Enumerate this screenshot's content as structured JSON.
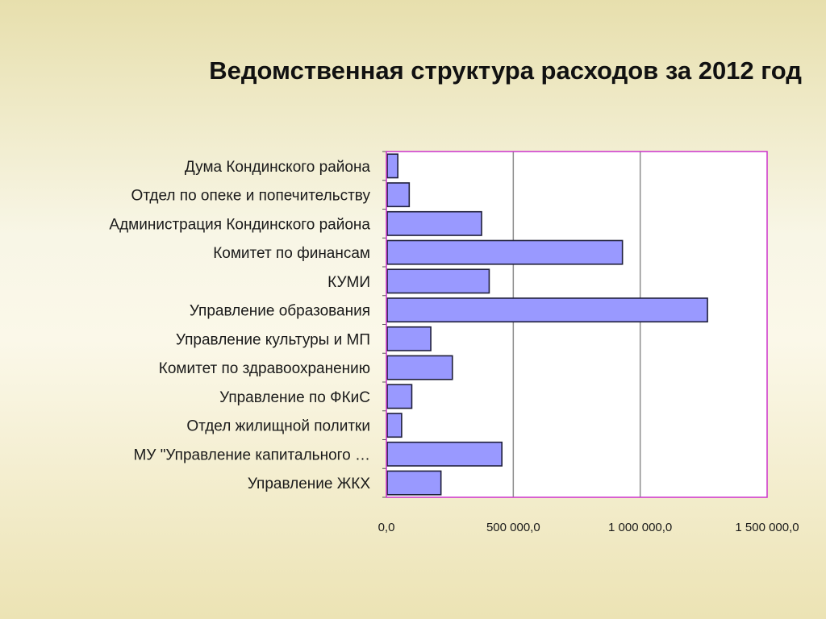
{
  "title": "Ведомственная структура расходов за 2012 год",
  "colors": {
    "bar_fill": "#9999ff",
    "bar_stroke": "#1f1f3a",
    "plot_border": "#cc33cc",
    "gridline": "#8c8c8c",
    "plot_background": "#ffffff"
  },
  "chart_data": {
    "type": "bar",
    "orientation": "horizontal",
    "categories": [
      "Дума Кондинского района",
      "Отдел  по опеке и попечительству",
      "Администрация  Кондинского района",
      "Комитет по финансам",
      "КУМИ",
      "Управление  образования",
      "Управление культуры  и МП",
      "Комитет  по здравоохранению",
      "Управление по ФКиС",
      "Отдел жилищной политки",
      "МУ \"Управление  капитального …",
      "Управление ЖКХ"
    ],
    "values": [
      45000,
      90000,
      375000,
      930000,
      405000,
      1265000,
      175000,
      260000,
      100000,
      60000,
      455000,
      215000
    ],
    "xlim": [
      0,
      1500000
    ],
    "xticks": [
      0,
      500000,
      1000000,
      1500000
    ],
    "xtick_labels": [
      "0,0",
      "500 000,0",
      "1 000 000,0",
      "1 500 000,0"
    ],
    "grid": "vertical",
    "legend": "none"
  }
}
